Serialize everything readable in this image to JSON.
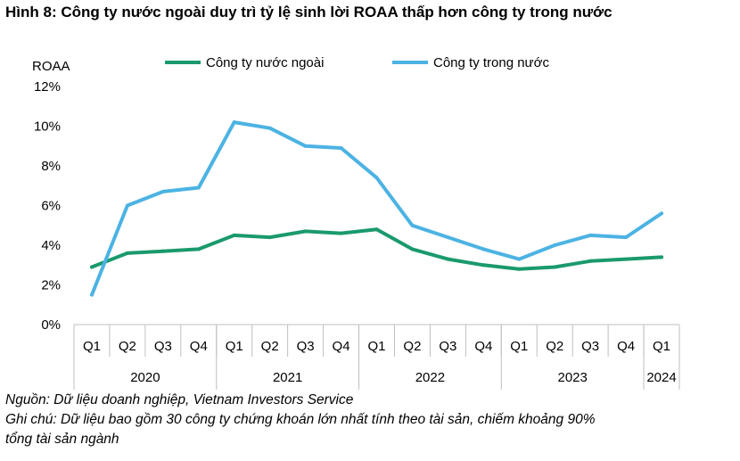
{
  "title": "Hình 8: Công ty nước ngoài duy trì tỷ lệ sinh lời ROAA thấp hơn công ty trong nước",
  "chart_data": {
    "type": "line",
    "ylabel": "ROAA",
    "ylim": [
      0,
      12
    ],
    "yticks": [
      "0%",
      "2%",
      "4%",
      "6%",
      "8%",
      "10%",
      "12%"
    ],
    "grid": false,
    "legend_position": "top",
    "categories": [
      "Q1",
      "Q2",
      "Q3",
      "Q4",
      "Q1",
      "Q2",
      "Q3",
      "Q4",
      "Q1",
      "Q2",
      "Q3",
      "Q4",
      "Q1",
      "Q2",
      "Q3",
      "Q4",
      "Q1"
    ],
    "year_groups": [
      {
        "label": "2020",
        "count": 4
      },
      {
        "label": "2021",
        "count": 4
      },
      {
        "label": "2022",
        "count": 4
      },
      {
        "label": "2023",
        "count": 4
      },
      {
        "label": "2024",
        "count": 1
      }
    ],
    "series": [
      {
        "name": "Công ty nước ngoài",
        "color": "#1a9a6c",
        "values": [
          2.9,
          3.6,
          3.7,
          3.8,
          4.5,
          4.4,
          4.7,
          4.6,
          4.8,
          3.8,
          3.3,
          3.0,
          2.8,
          2.9,
          3.2,
          3.3,
          3.4
        ]
      },
      {
        "name": "Công ty trong nước",
        "color": "#4cb3e3",
        "values": [
          1.5,
          6.0,
          6.7,
          6.9,
          10.2,
          9.9,
          9.0,
          8.9,
          7.4,
          5.0,
          4.4,
          3.8,
          3.3,
          4.0,
          4.5,
          4.4,
          5.6
        ]
      }
    ]
  },
  "notes": {
    "source": "Nguồn: Dữ liệu doanh nghiệp, Vietnam Investors Service",
    "note_line1": "Ghi chú: Dữ liệu bao gồm 30 công ty chứng khoán lớn nhất tính theo tài sản, chiếm khoảng 90%",
    "note_line2": "tổng tài sản ngành"
  }
}
